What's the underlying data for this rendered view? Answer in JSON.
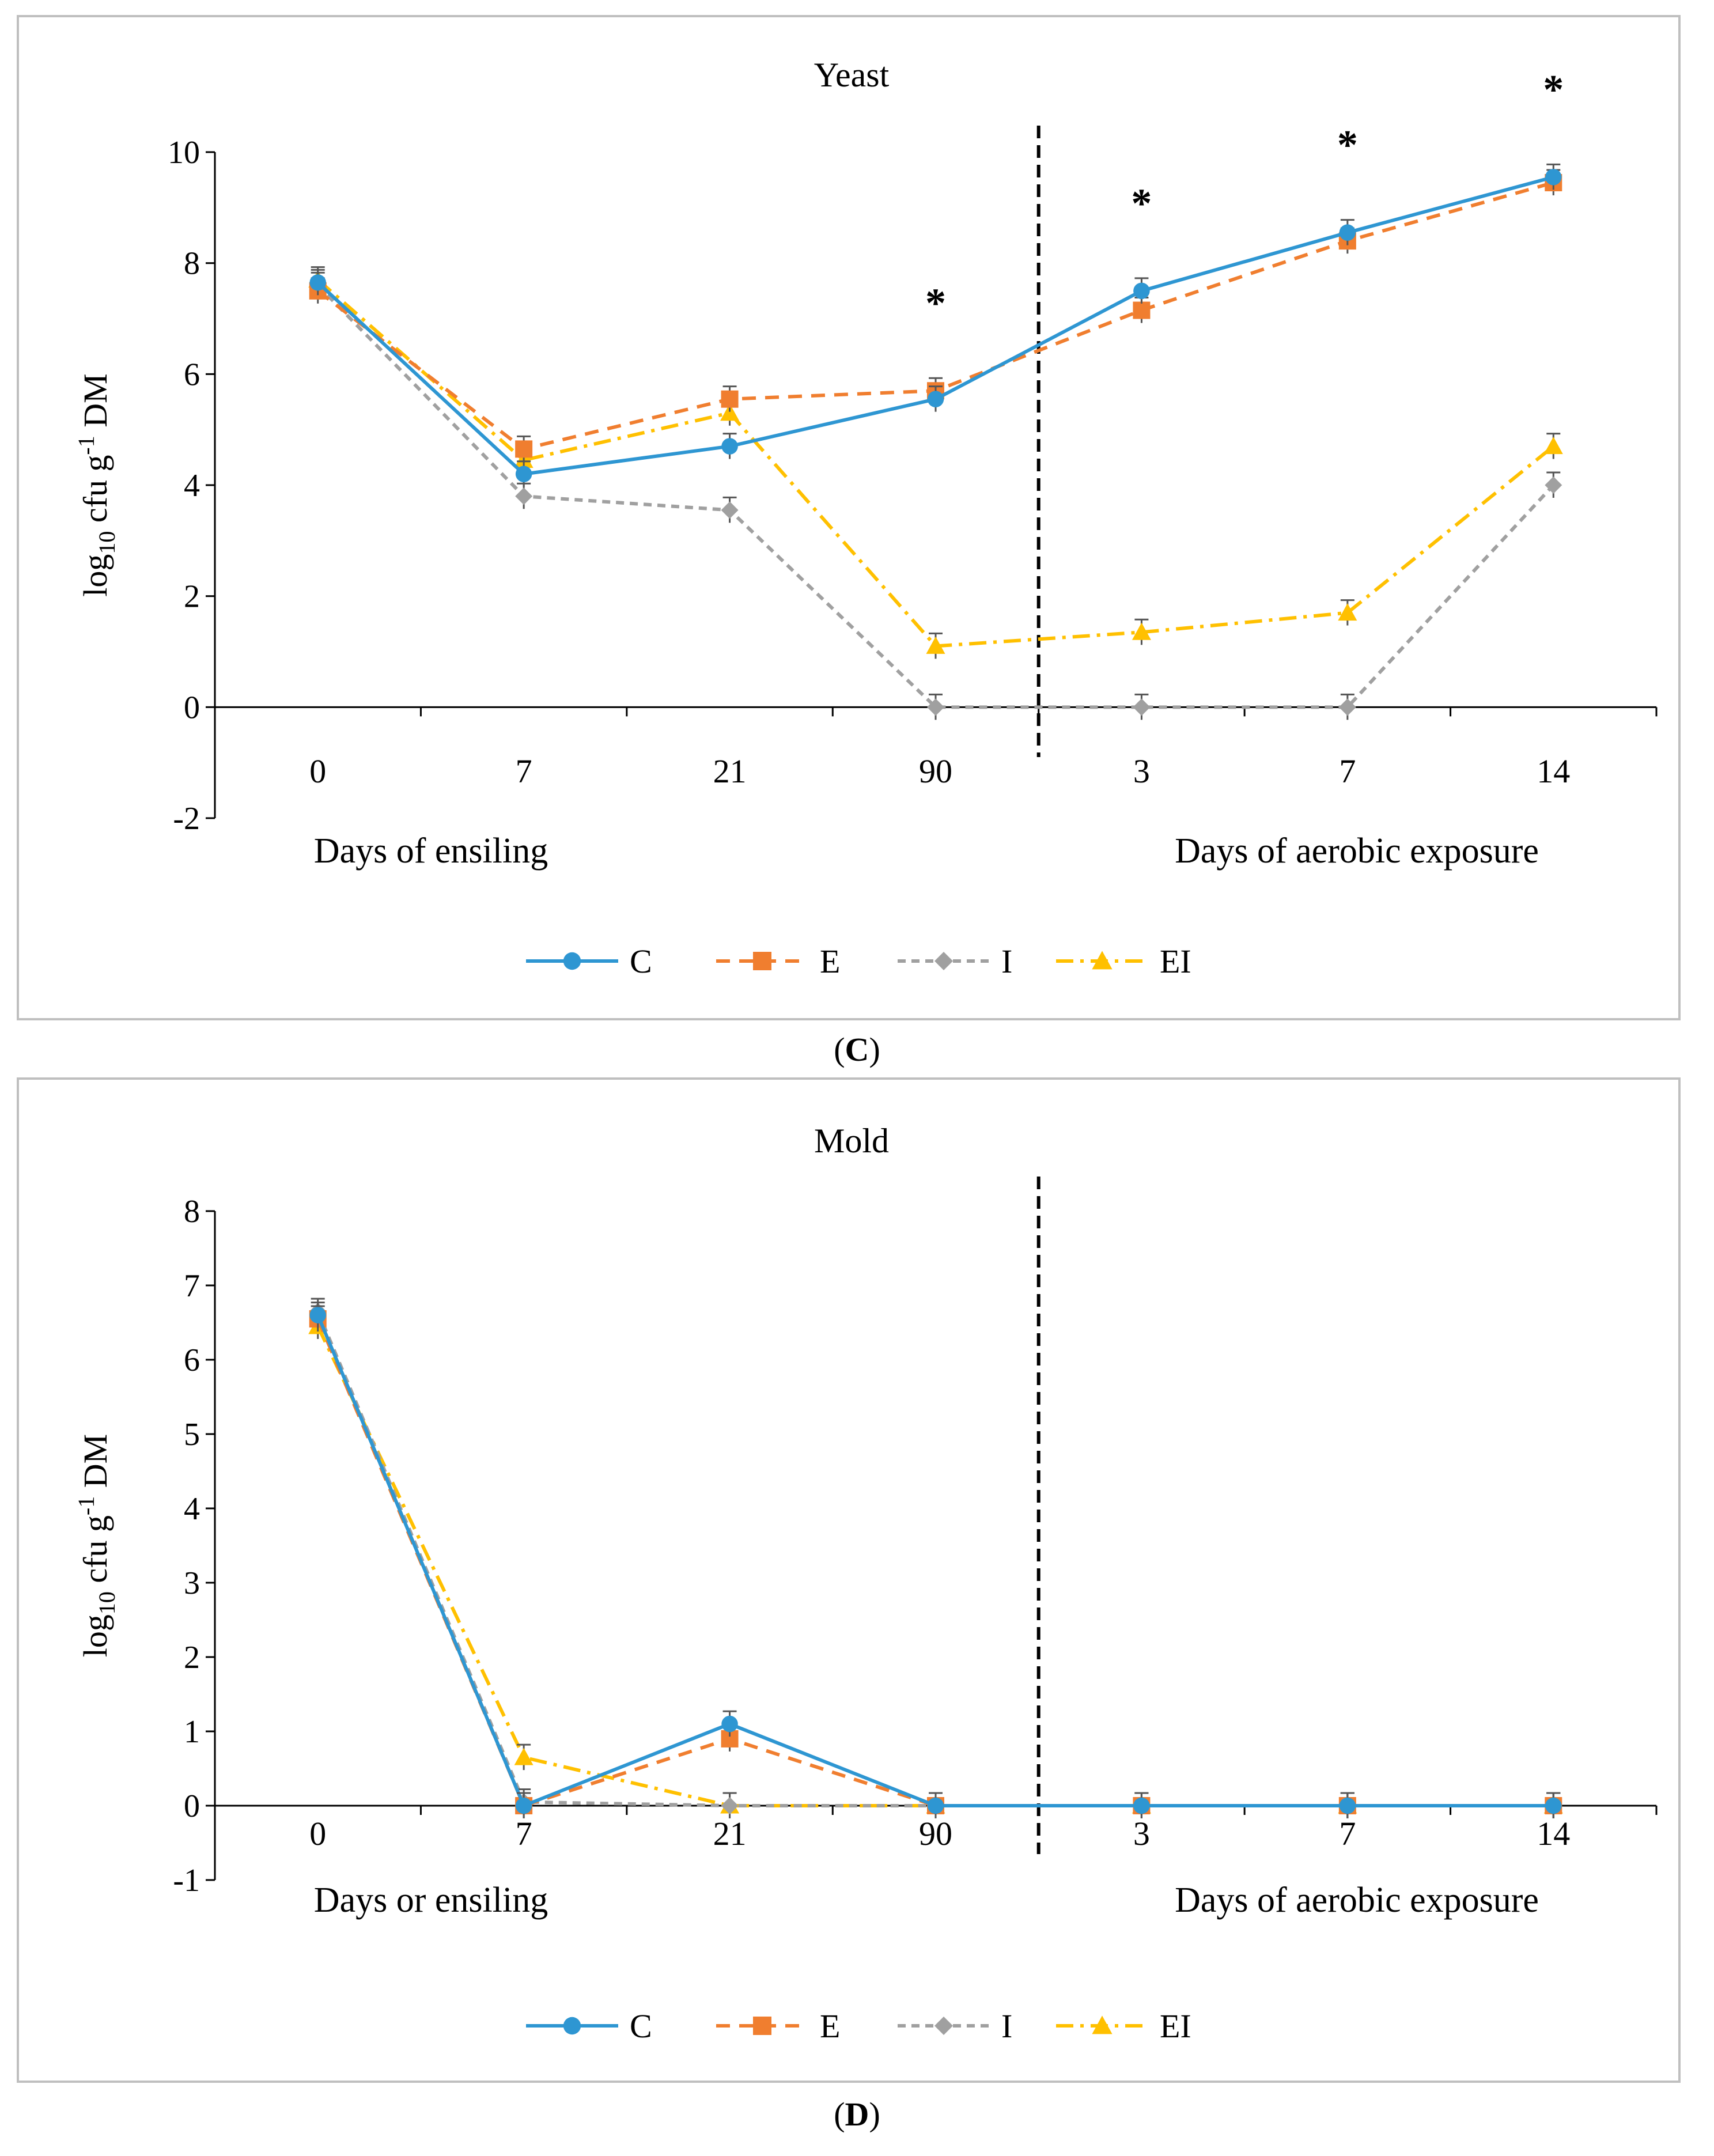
{
  "chart_data": [
    {
      "type": "line",
      "title": "Yeast",
      "ylabel_base": "log",
      "ylabel_sub": "10",
      "ylabel_mid": " cfu g",
      "ylabel_sup": "-1",
      "ylabel_end": " DM",
      "categories": [
        "0",
        "7",
        "21",
        "90",
        "3",
        "7",
        "14"
      ],
      "ylim": [
        -2,
        10
      ],
      "yticks": [
        10,
        8,
        6,
        4,
        2,
        0,
        -2
      ],
      "ensiling_label": "Days of ensiling",
      "aerobic_label": "Days of aerobic exposure",
      "significance_marker": "*",
      "significant_points": [
        3,
        4,
        5,
        6
      ],
      "series": [
        {
          "name": "C",
          "color": "#2e96d2",
          "dash": "none",
          "marker": "circle",
          "values": [
            7.65,
            4.2,
            4.7,
            5.55,
            7.5,
            8.55,
            9.55
          ]
        },
        {
          "name": "E",
          "color": "#f07e2f",
          "dash": "24,16",
          "marker": "square",
          "values": [
            7.5,
            4.65,
            5.55,
            5.7,
            7.15,
            8.4,
            9.45
          ]
        },
        {
          "name": "I",
          "color": "#a0a0a0",
          "dash": "14,10",
          "marker": "diamond",
          "values": [
            7.6,
            3.8,
            3.55,
            0,
            0,
            0,
            4.0
          ]
        },
        {
          "name": "EI",
          "color": "#ffc000",
          "dash": "30,12,6,12",
          "marker": "triangle",
          "values": [
            7.7,
            4.45,
            5.3,
            1.1,
            1.35,
            1.7,
            4.7
          ]
        }
      ]
    },
    {
      "type": "line",
      "title": "Mold",
      "ylabel_base": "log",
      "ylabel_sub": "10",
      "ylabel_mid": " cfu g",
      "ylabel_sup": "-1",
      "ylabel_end": " DM",
      "categories": [
        "0",
        "7",
        "21",
        "90",
        "3",
        "7",
        "14"
      ],
      "ylim": [
        -1,
        8
      ],
      "yticks": [
        8,
        7,
        6,
        5,
        4,
        3,
        2,
        1,
        0,
        -1
      ],
      "ensiling_label": "Days or ensiling",
      "aerobic_label": "Days of aerobic exposure",
      "significance_marker": "",
      "significant_points": [],
      "series": [
        {
          "name": "C",
          "color": "#2e96d2",
          "dash": "none",
          "marker": "circle",
          "values": [
            6.6,
            0,
            1.1,
            0,
            0,
            0,
            0
          ]
        },
        {
          "name": "E",
          "color": "#f07e2f",
          "dash": "24,16",
          "marker": "square",
          "values": [
            6.55,
            0,
            0.9,
            0,
            0,
            0,
            0
          ]
        },
        {
          "name": "I",
          "color": "#a0a0a0",
          "dash": "14,10",
          "marker": "diamond",
          "values": [
            6.65,
            0.05,
            0,
            0,
            0,
            0,
            0
          ]
        },
        {
          "name": "EI",
          "color": "#ffc000",
          "dash": "30,12,6,12",
          "marker": "triangle",
          "values": [
            6.45,
            0.65,
            0,
            0,
            0,
            0,
            0
          ]
        }
      ]
    }
  ],
  "panels": [
    {
      "open": "(",
      "letter": "C",
      "close": ")"
    },
    {
      "open": "(",
      "letter": "D",
      "close": ")"
    }
  ]
}
